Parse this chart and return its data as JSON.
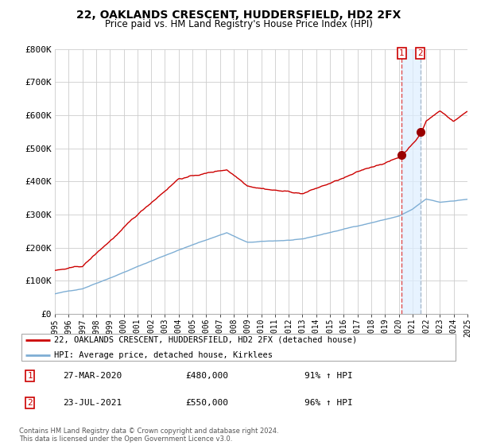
{
  "title": "22, OAKLANDS CRESCENT, HUDDERSFIELD, HD2 2FX",
  "subtitle": "Price paid vs. HM Land Registry's House Price Index (HPI)",
  "legend_line1": "22, OAKLANDS CRESCENT, HUDDERSFIELD, HD2 2FX (detached house)",
  "legend_line2": "HPI: Average price, detached house, Kirklees",
  "event1_date": "27-MAR-2020",
  "event1_price": "£480,000",
  "event1_hpi": "91% ↑ HPI",
  "event2_date": "23-JUL-2021",
  "event2_price": "£550,000",
  "event2_hpi": "96% ↑ HPI",
  "footer": "Contains HM Land Registry data © Crown copyright and database right 2024.\nThis data is licensed under the Open Government Licence v3.0.",
  "line1_color": "#cc0000",
  "line2_color": "#7eaed4",
  "event1_vline_color": "#e05050",
  "event2_vline_color": "#aabbcc",
  "event_marker_color": "#990000",
  "box_color": "#cc0000",
  "shade_color": "#ddeeff",
  "ylim": [
    0,
    800000
  ],
  "yticks": [
    0,
    100000,
    200000,
    300000,
    400000,
    500000,
    600000,
    700000,
    800000
  ],
  "ytick_labels": [
    "£0",
    "£100K",
    "£200K",
    "£300K",
    "£400K",
    "£500K",
    "£600K",
    "£700K",
    "£800K"
  ],
  "xmin": 1995,
  "xmax": 2025,
  "event1_x": 2020.22,
  "event2_x": 2021.58,
  "event1_y": 480000,
  "event2_y": 550000
}
